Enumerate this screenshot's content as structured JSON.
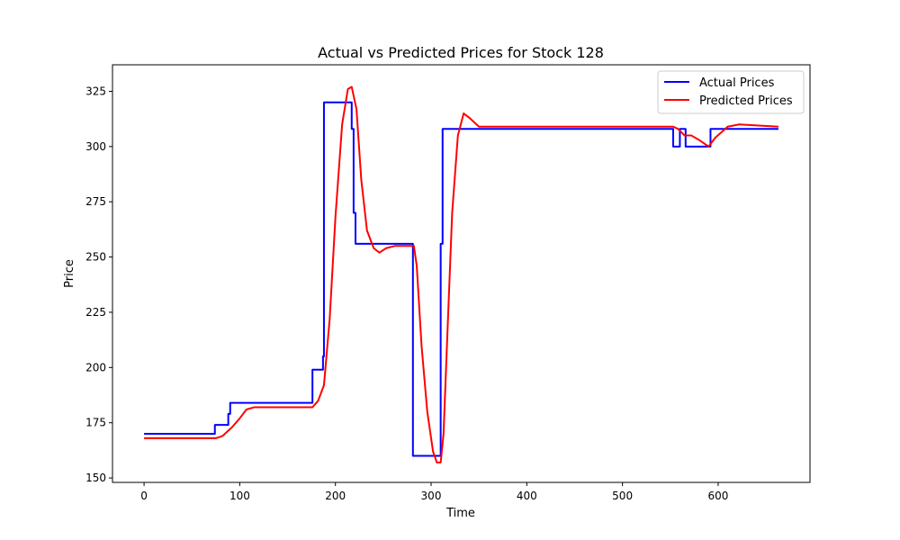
{
  "chart_data": {
    "type": "line",
    "title": "Actual vs Predicted Prices for Stock 128",
    "xlabel": "Time",
    "ylabel": "Price",
    "xlim": [
      -33,
      696
    ],
    "ylim": [
      148,
      337
    ],
    "xticks": [
      0,
      100,
      200,
      300,
      400,
      500,
      600
    ],
    "yticks": [
      150,
      175,
      200,
      225,
      250,
      275,
      300,
      325
    ],
    "grid": false,
    "legend": "top-right",
    "series": [
      {
        "name": "Actual Prices",
        "color": "#0000ff",
        "x": [
          0,
          74,
          74,
          88,
          88,
          90,
          90,
          176,
          176,
          187,
          187,
          188,
          188,
          217,
          217,
          219,
          219,
          221,
          221,
          281,
          281,
          310,
          310,
          312,
          312,
          553,
          553,
          560,
          560,
          566,
          566,
          592,
          592,
          663
        ],
        "y": [
          170,
          170,
          174,
          174,
          179,
          179,
          184,
          184,
          199,
          199,
          205,
          205,
          320,
          320,
          308,
          308,
          270,
          270,
          256,
          256,
          160,
          160,
          256,
          256,
          308,
          308,
          300,
          300,
          308,
          308,
          300,
          300,
          308,
          308
        ]
      },
      {
        "name": "Predicted Prices",
        "color": "#ff0000",
        "x": [
          0,
          75,
          82,
          92,
          100,
          107,
          115,
          125,
          150,
          176,
          182,
          188,
          194,
          200,
          207,
          213,
          217,
          222,
          227,
          233,
          240,
          246,
          253,
          262,
          282,
          285,
          290,
          296,
          302,
          306,
          310,
          313,
          317,
          322,
          328,
          334,
          340,
          350,
          365,
          400,
          553,
          558,
          565,
          572,
          580,
          590,
          597,
          610,
          622,
          663
        ],
        "y": [
          168,
          168,
          169,
          173,
          177,
          181,
          182,
          182,
          182,
          182,
          185,
          192,
          222,
          268,
          310,
          326,
          327,
          317,
          285,
          262,
          254,
          252,
          254,
          255,
          255,
          246,
          210,
          180,
          162,
          157,
          157,
          170,
          215,
          270,
          305,
          315,
          313,
          309,
          309,
          309,
          309,
          308,
          305,
          305,
          303,
          300,
          304,
          309,
          310,
          309
        ]
      }
    ]
  }
}
